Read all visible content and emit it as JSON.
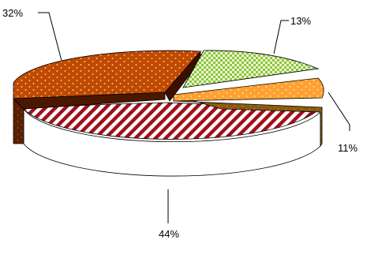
{
  "chart_data": {
    "type": "pie",
    "style": "3d-exploded",
    "title": "",
    "slices": [
      {
        "label": "44%",
        "value": 44,
        "color": "#c0141e",
        "pattern": "diagonal-stripes",
        "exploded": true
      },
      {
        "label": "32%",
        "value": 32,
        "color": "#c04a00",
        "pattern": "dots"
      },
      {
        "label": "13%",
        "value": 13,
        "color": "#9fd040",
        "pattern": "checker"
      },
      {
        "label": "11%",
        "value": 11,
        "color": "#ffa030",
        "pattern": "dots"
      }
    ],
    "legend": "none",
    "leader_lines": true
  }
}
